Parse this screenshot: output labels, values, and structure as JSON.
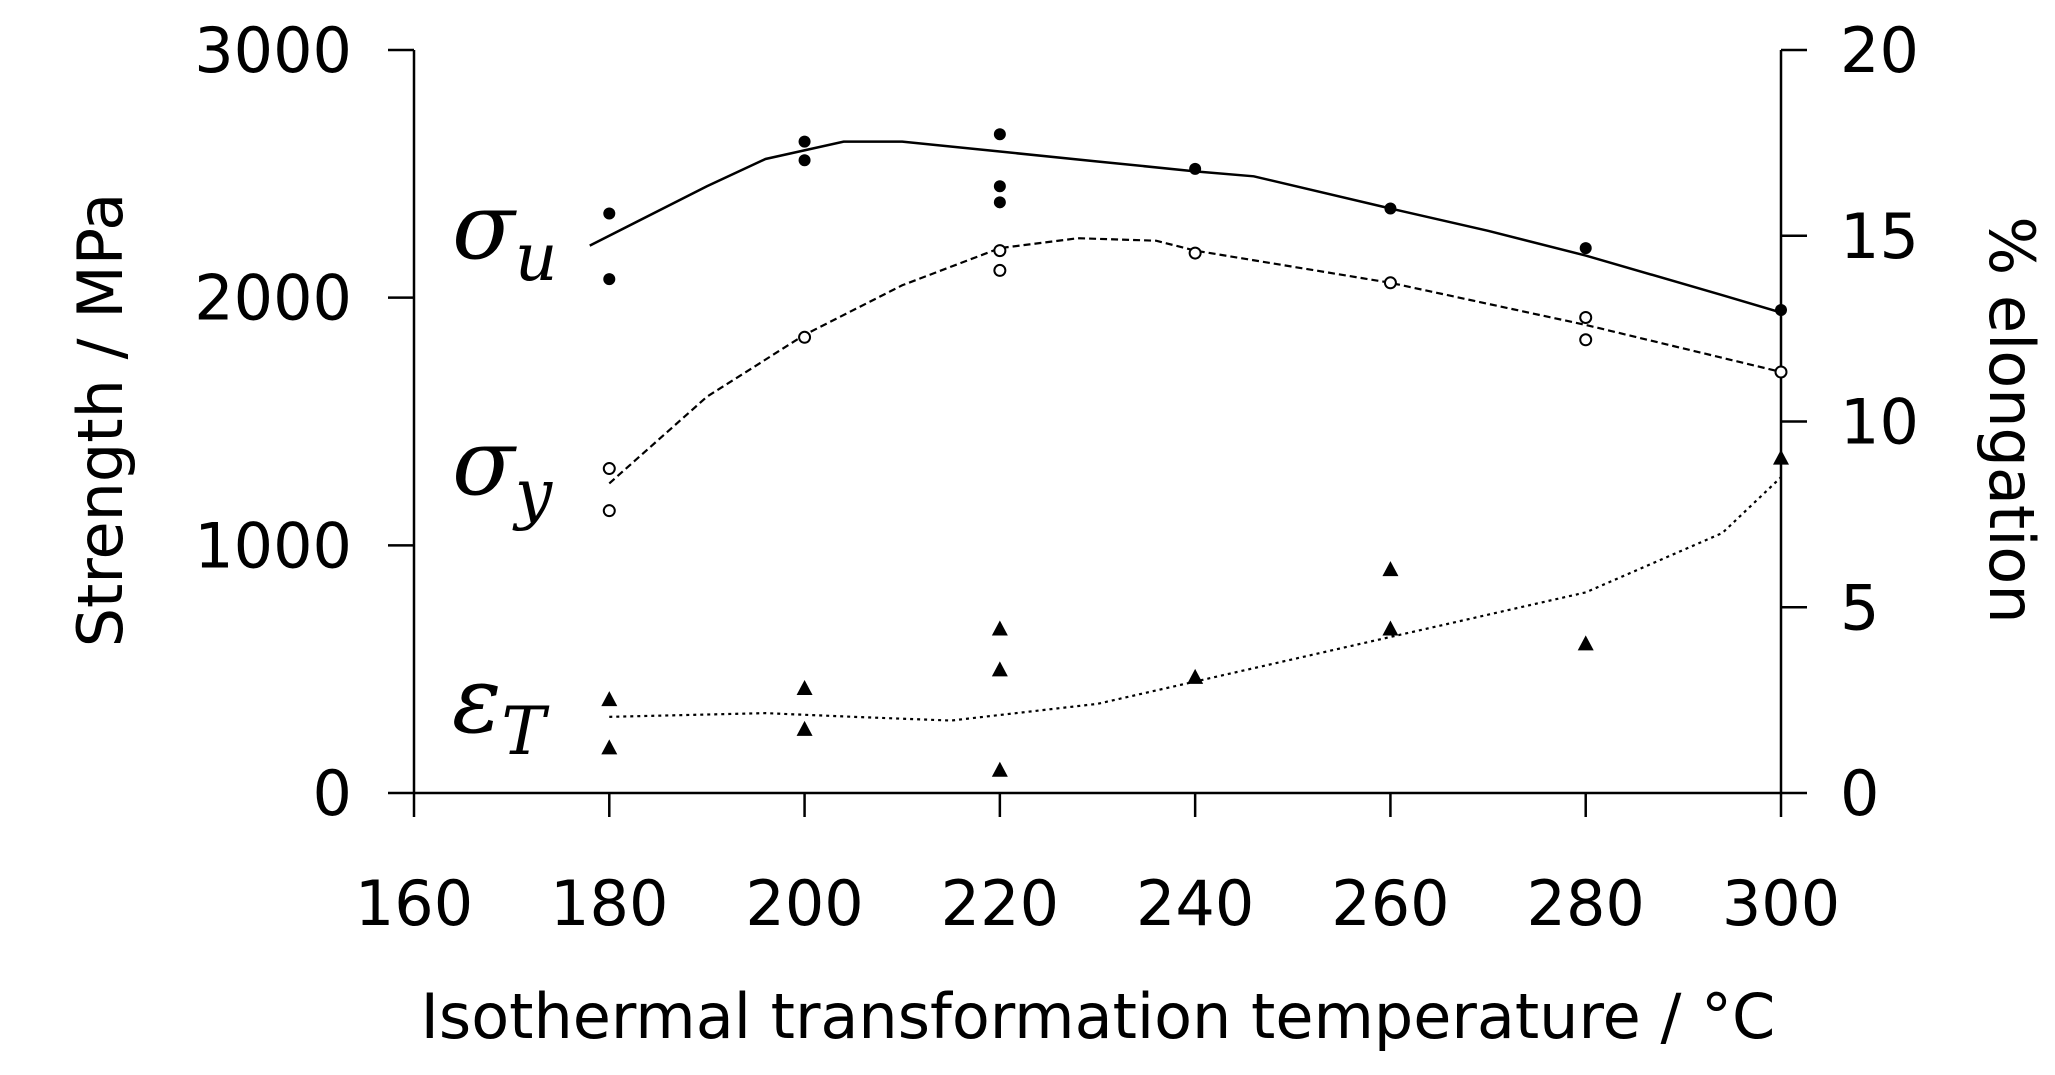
{
  "chart_data": {
    "type": "scatter",
    "xlabel": "Isothermal transformation temperature / °C",
    "ylabel": "Strength / MPa",
    "y2label": "% elongation",
    "xlim": [
      160,
      300
    ],
    "xticks": [
      160,
      180,
      200,
      220,
      240,
      260,
      280,
      300
    ],
    "ylim": [
      0,
      3000
    ],
    "yticks": [
      0,
      1000,
      2000,
      3000
    ],
    "y2lim": [
      0,
      20
    ],
    "y2ticks": [
      0,
      5,
      10,
      15,
      20
    ],
    "color": "#000000",
    "series": [
      {
        "name": "σ",
        "sub": "u",
        "marker": "filled-circle",
        "x": [
          180,
          180,
          200,
          200,
          220,
          220,
          220,
          240,
          260,
          280,
          300
        ],
        "values": [
          2340,
          2075,
          2630,
          2555,
          2660,
          2450,
          2385,
          2520,
          2360,
          2200,
          1950
        ]
      },
      {
        "name": "σ",
        "sub": "y",
        "marker": "open-circle",
        "x": [
          180,
          180,
          200,
          220,
          220,
          240,
          260,
          280,
          280,
          300
        ],
        "values": [
          1310,
          1140,
          1840,
          2190,
          2110,
          2180,
          2060,
          1920,
          1830,
          1700
        ]
      },
      {
        "name": "ε",
        "sub": "T",
        "marker": "triangle",
        "axis": "y2",
        "x": [
          180,
          180,
          200,
          200,
          220,
          220,
          220,
          240,
          260,
          260,
          280,
          300
        ],
        "values": [
          2.5,
          1.2,
          2.8,
          1.7,
          4.4,
          3.3,
          0.6,
          3.1,
          6.0,
          4.4,
          4.0,
          9.0
        ]
      }
    ],
    "fits": [
      {
        "dash": "solid",
        "x": [
          178,
          190,
          196,
          204,
          210,
          220,
          230,
          240,
          246,
          260,
          270,
          280,
          294,
          300
        ],
        "values": [
          2210,
          2450,
          2560,
          2630,
          2630,
          2590,
          2550,
          2510,
          2490,
          2360,
          2270,
          2170,
          2010,
          1940
        ]
      },
      {
        "dash": "dashed",
        "x": [
          180,
          190,
          200,
          210,
          220,
          228,
          236,
          240,
          260,
          280,
          300
        ],
        "values": [
          1250,
          1600,
          1850,
          2050,
          2200,
          2240,
          2230,
          2190,
          2060,
          1890,
          1700
        ]
      },
      {
        "dash": "dotted",
        "axis": "y2",
        "x": [
          180,
          196,
          205,
          215,
          220,
          230,
          240,
          250,
          260,
          270,
          280,
          294,
          300
        ],
        "values": [
          2.05,
          2.15,
          2.05,
          1.95,
          2.1,
          2.4,
          3.0,
          3.6,
          4.2,
          4.8,
          5.4,
          7.0,
          8.5
        ]
      }
    ]
  }
}
